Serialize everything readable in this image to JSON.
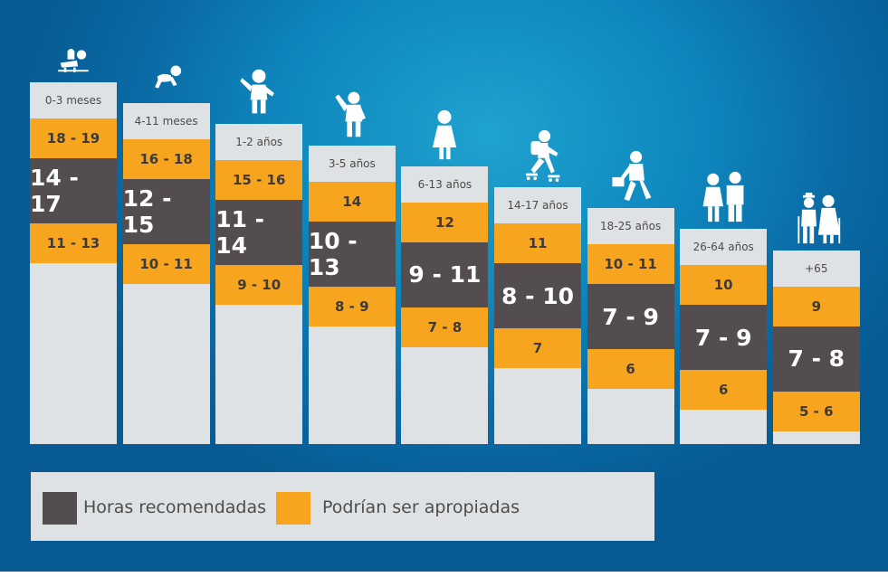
{
  "colors": {
    "recommended": "#534d4f",
    "appropriate": "#f7a51f",
    "column": "#dfe2e4",
    "background": "#0e86bd"
  },
  "chart_data": {
    "type": "table",
    "title": "",
    "groups": [
      {
        "age": "0-3 meses",
        "appropriate_high": "18 - 19",
        "recommended": "14 - 17",
        "appropriate_low": "11 - 13",
        "icon": "baby-diaper-icon"
      },
      {
        "age": "4-11 meses",
        "appropriate_high": "16 - 18",
        "recommended": "12 - 15",
        "appropriate_low": "10 - 11",
        "icon": "crawling-baby-icon"
      },
      {
        "age": "1-2 años",
        "appropriate_high": "15 - 16",
        "recommended": "11 - 14",
        "appropriate_low": "9 - 10",
        "icon": "toddler-icon"
      },
      {
        "age": "3-5 años",
        "appropriate_high": "14",
        "recommended": "10 - 13",
        "appropriate_low": "8 - 9",
        "icon": "waving-child-icon"
      },
      {
        "age": "6-13 años",
        "appropriate_high": "12",
        "recommended": "9 - 11",
        "appropriate_low": "7 - 8",
        "icon": "girl-icon"
      },
      {
        "age": "14-17 años",
        "appropriate_high": "11",
        "recommended": "8 - 10",
        "appropriate_low": "7",
        "icon": "teen-rollerskater-icon"
      },
      {
        "age": "18-25 años",
        "appropriate_high": "10 - 11",
        "recommended": "7 - 9",
        "appropriate_low": "6",
        "icon": "young-adult-briefcase-icon"
      },
      {
        "age": "26-64 años",
        "appropriate_high": "10",
        "recommended": "7 - 9",
        "appropriate_low": "6",
        "icon": "adult-couple-icon"
      },
      {
        "age": "+65",
        "appropriate_high": "9",
        "recommended": "7 - 8",
        "appropriate_low": "5 - 6",
        "icon": "elderly-couple-icon"
      }
    ],
    "legend": [
      {
        "label": "Horas recomendadas",
        "key": "recommended"
      },
      {
        "label": "Podrían ser apropiadas",
        "key": "appropriate"
      }
    ]
  }
}
